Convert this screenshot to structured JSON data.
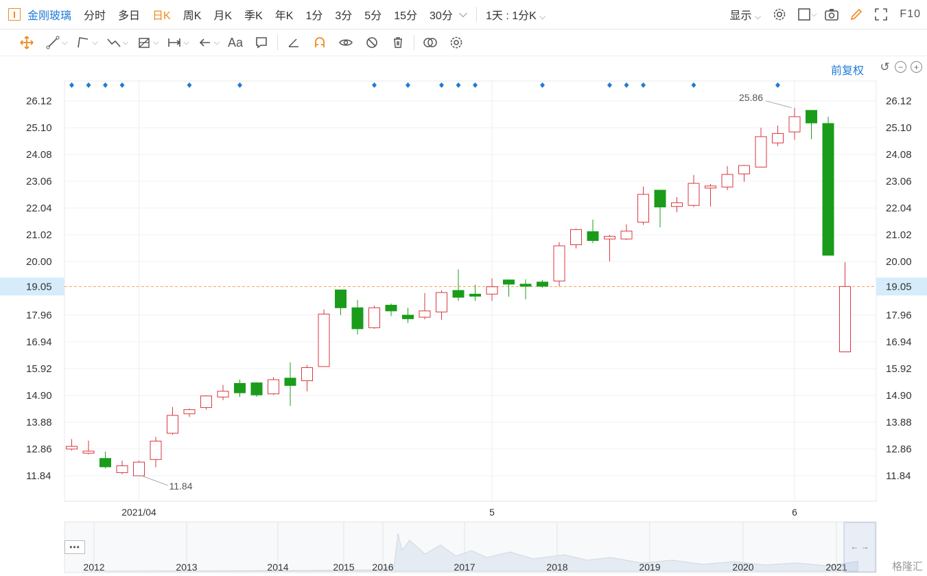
{
  "toolbar": {
    "stock_name": "金刚玻璃",
    "periods": [
      "分时",
      "多日",
      "日K",
      "周K",
      "月K",
      "季K",
      "年K",
      "1分",
      "3分",
      "5分",
      "15分",
      "30分"
    ],
    "active_period": "日K",
    "more_label": "1天 : 1分K",
    "display_label": "显示",
    "f10_label": "F10"
  },
  "drawing_tools": [
    "move-icon",
    "line-icon",
    "polyline-icon",
    "wave-icon",
    "fib-icon",
    "range-icon",
    "arrow-icon",
    "text-icon",
    "comment-icon",
    "ruler-icon",
    "magnet-icon",
    "eye-icon",
    "hide-icon",
    "trash-icon",
    "compare-icon",
    "settings-icon"
  ],
  "adjust_label": "前复权",
  "chart_data": {
    "type": "candlestick",
    "y_ticks": [
      "26.12",
      "25.10",
      "24.08",
      "23.06",
      "22.04",
      "21.02",
      "20.00",
      "19.05",
      "17.96",
      "16.94",
      "15.92",
      "14.90",
      "13.88",
      "12.86",
      "11.84"
    ],
    "x_ticks": [
      "2021/04",
      "5",
      "6"
    ],
    "current_price": "19.05",
    "max_label": "25.86",
    "min_label": "11.84",
    "up_color": "#d9363e",
    "down_color": "#1a9c1a",
    "candles": [
      {
        "o": 12.86,
        "h": 13.24,
        "l": 12.8,
        "c": 12.96
      },
      {
        "o": 12.7,
        "h": 13.18,
        "l": 12.66,
        "c": 12.78
      },
      {
        "o": 12.5,
        "h": 12.76,
        "l": 12.12,
        "c": 12.18
      },
      {
        "o": 11.96,
        "h": 12.42,
        "l": 11.9,
        "c": 12.22
      },
      {
        "o": 11.84,
        "h": 12.42,
        "l": 11.84,
        "c": 12.36
      },
      {
        "o": 12.46,
        "h": 13.32,
        "l": 12.16,
        "c": 13.16
      },
      {
        "o": 13.46,
        "h": 14.46,
        "l": 13.4,
        "c": 14.14
      },
      {
        "o": 14.2,
        "h": 14.4,
        "l": 14.08,
        "c": 14.36
      },
      {
        "o": 14.44,
        "h": 14.9,
        "l": 14.36,
        "c": 14.88
      },
      {
        "o": 14.84,
        "h": 15.3,
        "l": 14.72,
        "c": 15.06
      },
      {
        "o": 15.36,
        "h": 15.5,
        "l": 14.84,
        "c": 15.0
      },
      {
        "o": 15.38,
        "h": 15.4,
        "l": 14.84,
        "c": 14.92
      },
      {
        "o": 14.96,
        "h": 15.6,
        "l": 14.92,
        "c": 15.5
      },
      {
        "o": 15.56,
        "h": 16.16,
        "l": 14.5,
        "c": 15.28
      },
      {
        "o": 15.46,
        "h": 16.06,
        "l": 15.06,
        "c": 15.96
      },
      {
        "o": 16.0,
        "h": 18.18,
        "l": 16.0,
        "c": 18.0
      },
      {
        "o": 18.92,
        "h": 18.92,
        "l": 17.96,
        "c": 18.24
      },
      {
        "o": 18.24,
        "h": 18.54,
        "l": 17.22,
        "c": 17.44
      },
      {
        "o": 17.48,
        "h": 18.32,
        "l": 17.44,
        "c": 18.24
      },
      {
        "o": 18.34,
        "h": 18.4,
        "l": 17.92,
        "c": 18.12
      },
      {
        "o": 17.96,
        "h": 18.24,
        "l": 17.66,
        "c": 17.82
      },
      {
        "o": 17.88,
        "h": 18.8,
        "l": 17.8,
        "c": 18.12
      },
      {
        "o": 18.08,
        "h": 18.9,
        "l": 17.78,
        "c": 18.82
      },
      {
        "o": 18.9,
        "h": 19.7,
        "l": 18.5,
        "c": 18.64
      },
      {
        "o": 18.76,
        "h": 19.12,
        "l": 18.5,
        "c": 18.68
      },
      {
        "o": 18.76,
        "h": 19.36,
        "l": 18.5,
        "c": 19.04
      },
      {
        "o": 19.3,
        "h": 19.32,
        "l": 18.66,
        "c": 19.14
      },
      {
        "o": 19.14,
        "h": 19.32,
        "l": 18.56,
        "c": 19.06
      },
      {
        "o": 19.22,
        "h": 19.3,
        "l": 19.0,
        "c": 19.06
      },
      {
        "o": 19.26,
        "h": 20.74,
        "l": 19.06,
        "c": 20.6
      },
      {
        "o": 20.64,
        "h": 21.26,
        "l": 20.5,
        "c": 21.22
      },
      {
        "o": 21.14,
        "h": 21.6,
        "l": 20.7,
        "c": 20.8
      },
      {
        "o": 20.86,
        "h": 21.02,
        "l": 20.0,
        "c": 20.96
      },
      {
        "o": 20.86,
        "h": 21.42,
        "l": 20.82,
        "c": 21.16
      },
      {
        "o": 21.5,
        "h": 22.86,
        "l": 21.4,
        "c": 22.56
      },
      {
        "o": 22.72,
        "h": 22.72,
        "l": 21.3,
        "c": 22.08
      },
      {
        "o": 22.1,
        "h": 22.46,
        "l": 21.88,
        "c": 22.24
      },
      {
        "o": 22.14,
        "h": 23.3,
        "l": 22.08,
        "c": 22.98
      },
      {
        "o": 22.8,
        "h": 22.96,
        "l": 22.1,
        "c": 22.88
      },
      {
        "o": 22.84,
        "h": 23.64,
        "l": 22.72,
        "c": 23.32
      },
      {
        "o": 23.34,
        "h": 23.68,
        "l": 23.04,
        "c": 23.66
      },
      {
        "o": 23.6,
        "h": 25.1,
        "l": 23.6,
        "c": 24.76
      },
      {
        "o": 24.52,
        "h": 25.18,
        "l": 24.4,
        "c": 24.88
      },
      {
        "o": 24.94,
        "h": 25.86,
        "l": 24.64,
        "c": 25.52
      },
      {
        "o": 25.76,
        "h": 25.76,
        "l": 24.66,
        "c": 25.28
      },
      {
        "o": 25.26,
        "h": 25.52,
        "l": 20.24,
        "c": 20.24
      },
      {
        "o": 16.56,
        "h": 19.98,
        "l": 16.56,
        "c": 19.05
      }
    ],
    "events": [
      0,
      1,
      2,
      3,
      7,
      10,
      18,
      20,
      22,
      23,
      24,
      28,
      32,
      33,
      34,
      37,
      42
    ],
    "navigator": {
      "years": [
        "2012",
        "2013",
        "2014",
        "2015",
        "2016",
        "2017",
        "2018",
        "2019",
        "2020",
        "2021"
      ]
    }
  },
  "watermark": "格隆汇"
}
